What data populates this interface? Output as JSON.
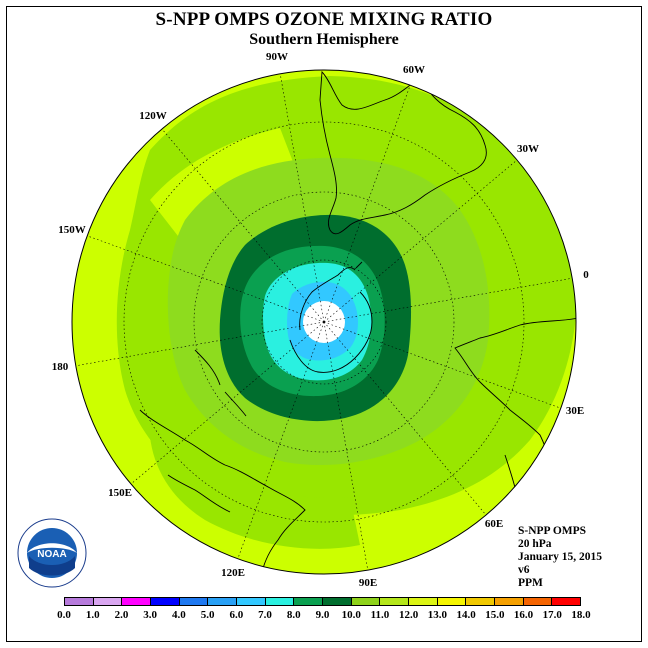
{
  "title": "S-NPP OMPS OZONE MIXING RATIO",
  "subtitle": "Southern Hemisphere",
  "longitude_labels": [
    "90W",
    "60W",
    "30W",
    "0",
    "30E",
    "60E",
    "90E",
    "120E",
    "150E",
    "180",
    "150W",
    "120W"
  ],
  "info": {
    "instrument": "S-NPP OMPS",
    "level": "20 hPa",
    "date": "January 15, 2015",
    "version": "v6",
    "units": "PPM"
  },
  "logo": {
    "text": "NOAA",
    "ring_text": "NATIONAL OCEANIC AND ATMOSPHERIC ADMINISTRATION U.S. DEPARTMENT OF COMMERCE"
  },
  "colorbar": {
    "ticks": [
      "0.0",
      "1.0",
      "2.0",
      "3.0",
      "4.0",
      "5.0",
      "6.0",
      "7.0",
      "8.0",
      "9.0",
      "10.0",
      "11.0",
      "12.0",
      "13.0",
      "14.0",
      "15.0",
      "16.0",
      "17.0",
      "18.0"
    ],
    "colors": [
      "#b77bdc",
      "#d9a6f0",
      "#ff00ff",
      "#0000ff",
      "#1e78f0",
      "#28a0f5",
      "#32c8ff",
      "#2af0e0",
      "#0aa050",
      "#006e2e",
      "#8ed21a",
      "#b4e61a",
      "#dcf514",
      "#f5f500",
      "#f0c800",
      "#f5a000",
      "#f56400",
      "#ff0000",
      "#a0522d"
    ]
  },
  "map_colors": {
    "ocean_edge": "#ccff00",
    "band_11": "#99e600",
    "band_10": "#8edc1e",
    "band_9": "#006e2e",
    "band_8": "#0aa050",
    "band_7": "#2af0e0",
    "band_6": "#32c8ff",
    "center": "#ffffff"
  }
}
